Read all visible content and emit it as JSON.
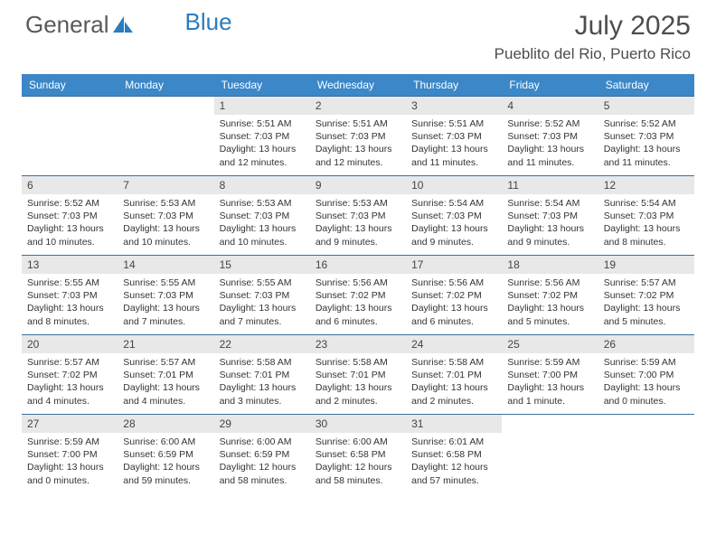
{
  "logo": {
    "text1": "General",
    "text2": "Blue"
  },
  "title": "July 2025",
  "location": "Pueblito del Rio, Puerto Rico",
  "colors": {
    "header_bg": "#3b87c8",
    "header_text": "#ffffff",
    "daynum_bg": "#e8e8e8",
    "border": "#3b6fa0",
    "logo_gray": "#5a5a5a",
    "logo_blue": "#2a7bbf"
  },
  "daynames": [
    "Sunday",
    "Monday",
    "Tuesday",
    "Wednesday",
    "Thursday",
    "Friday",
    "Saturday"
  ],
  "weeks": [
    [
      {
        "n": "",
        "sr": "",
        "ss": "",
        "dl": ""
      },
      {
        "n": "",
        "sr": "",
        "ss": "",
        "dl": ""
      },
      {
        "n": "1",
        "sr": "5:51 AM",
        "ss": "7:03 PM",
        "dl": "13 hours and 12 minutes."
      },
      {
        "n": "2",
        "sr": "5:51 AM",
        "ss": "7:03 PM",
        "dl": "13 hours and 12 minutes."
      },
      {
        "n": "3",
        "sr": "5:51 AM",
        "ss": "7:03 PM",
        "dl": "13 hours and 11 minutes."
      },
      {
        "n": "4",
        "sr": "5:52 AM",
        "ss": "7:03 PM",
        "dl": "13 hours and 11 minutes."
      },
      {
        "n": "5",
        "sr": "5:52 AM",
        "ss": "7:03 PM",
        "dl": "13 hours and 11 minutes."
      }
    ],
    [
      {
        "n": "6",
        "sr": "5:52 AM",
        "ss": "7:03 PM",
        "dl": "13 hours and 10 minutes."
      },
      {
        "n": "7",
        "sr": "5:53 AM",
        "ss": "7:03 PM",
        "dl": "13 hours and 10 minutes."
      },
      {
        "n": "8",
        "sr": "5:53 AM",
        "ss": "7:03 PM",
        "dl": "13 hours and 10 minutes."
      },
      {
        "n": "9",
        "sr": "5:53 AM",
        "ss": "7:03 PM",
        "dl": "13 hours and 9 minutes."
      },
      {
        "n": "10",
        "sr": "5:54 AM",
        "ss": "7:03 PM",
        "dl": "13 hours and 9 minutes."
      },
      {
        "n": "11",
        "sr": "5:54 AM",
        "ss": "7:03 PM",
        "dl": "13 hours and 9 minutes."
      },
      {
        "n": "12",
        "sr": "5:54 AM",
        "ss": "7:03 PM",
        "dl": "13 hours and 8 minutes."
      }
    ],
    [
      {
        "n": "13",
        "sr": "5:55 AM",
        "ss": "7:03 PM",
        "dl": "13 hours and 8 minutes."
      },
      {
        "n": "14",
        "sr": "5:55 AM",
        "ss": "7:03 PM",
        "dl": "13 hours and 7 minutes."
      },
      {
        "n": "15",
        "sr": "5:55 AM",
        "ss": "7:03 PM",
        "dl": "13 hours and 7 minutes."
      },
      {
        "n": "16",
        "sr": "5:56 AM",
        "ss": "7:02 PM",
        "dl": "13 hours and 6 minutes."
      },
      {
        "n": "17",
        "sr": "5:56 AM",
        "ss": "7:02 PM",
        "dl": "13 hours and 6 minutes."
      },
      {
        "n": "18",
        "sr": "5:56 AM",
        "ss": "7:02 PM",
        "dl": "13 hours and 5 minutes."
      },
      {
        "n": "19",
        "sr": "5:57 AM",
        "ss": "7:02 PM",
        "dl": "13 hours and 5 minutes."
      }
    ],
    [
      {
        "n": "20",
        "sr": "5:57 AM",
        "ss": "7:02 PM",
        "dl": "13 hours and 4 minutes."
      },
      {
        "n": "21",
        "sr": "5:57 AM",
        "ss": "7:01 PM",
        "dl": "13 hours and 4 minutes."
      },
      {
        "n": "22",
        "sr": "5:58 AM",
        "ss": "7:01 PM",
        "dl": "13 hours and 3 minutes."
      },
      {
        "n": "23",
        "sr": "5:58 AM",
        "ss": "7:01 PM",
        "dl": "13 hours and 2 minutes."
      },
      {
        "n": "24",
        "sr": "5:58 AM",
        "ss": "7:01 PM",
        "dl": "13 hours and 2 minutes."
      },
      {
        "n": "25",
        "sr": "5:59 AM",
        "ss": "7:00 PM",
        "dl": "13 hours and 1 minute."
      },
      {
        "n": "26",
        "sr": "5:59 AM",
        "ss": "7:00 PM",
        "dl": "13 hours and 0 minutes."
      }
    ],
    [
      {
        "n": "27",
        "sr": "5:59 AM",
        "ss": "7:00 PM",
        "dl": "13 hours and 0 minutes."
      },
      {
        "n": "28",
        "sr": "6:00 AM",
        "ss": "6:59 PM",
        "dl": "12 hours and 59 minutes."
      },
      {
        "n": "29",
        "sr": "6:00 AM",
        "ss": "6:59 PM",
        "dl": "12 hours and 58 minutes."
      },
      {
        "n": "30",
        "sr": "6:00 AM",
        "ss": "6:58 PM",
        "dl": "12 hours and 58 minutes."
      },
      {
        "n": "31",
        "sr": "6:01 AM",
        "ss": "6:58 PM",
        "dl": "12 hours and 57 minutes."
      },
      {
        "n": "",
        "sr": "",
        "ss": "",
        "dl": ""
      },
      {
        "n": "",
        "sr": "",
        "ss": "",
        "dl": ""
      }
    ]
  ],
  "labels": {
    "sunrise": "Sunrise:",
    "sunset": "Sunset:",
    "daylight": "Daylight:"
  }
}
